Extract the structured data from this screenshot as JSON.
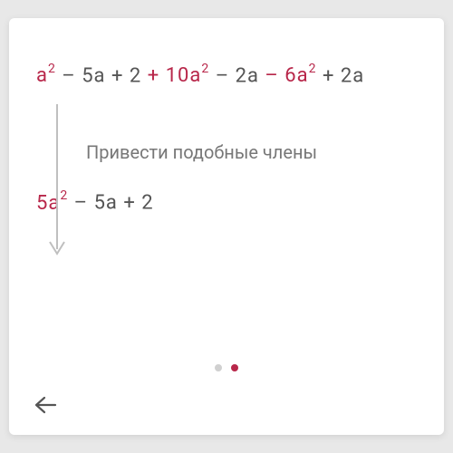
{
  "colors": {
    "highlight": "#b8274a",
    "text": "#555555",
    "label": "#777777",
    "dot_inactive": "#d0d0d0",
    "card_bg": "#ffffff",
    "page_bg": "#e8e8e8",
    "arrow": "#bfbfbf",
    "back_arrow": "#555555"
  },
  "typography": {
    "expr_fontsize": 22,
    "sup_fontsize": 14,
    "label_fontsize": 20
  },
  "expression_top": [
    {
      "text": "a",
      "hl": true,
      "sup": "2"
    },
    {
      "text": " – 5a + 2 ",
      "hl": false
    },
    {
      "text": "+ 10a",
      "hl": true,
      "sup": "2"
    },
    {
      "text": " – 2a ",
      "hl": false
    },
    {
      "text": "– 6a",
      "hl": true,
      "sup": "2"
    },
    {
      "text": " + 2a",
      "hl": false
    }
  ],
  "step_label": "Привести подобные члены",
  "expression_bottom": [
    {
      "text": "5a",
      "hl": true,
      "sup": "2"
    },
    {
      "text": " – 5a + 2",
      "hl": false
    }
  ],
  "pager": {
    "total": 2,
    "active_index": 1
  }
}
